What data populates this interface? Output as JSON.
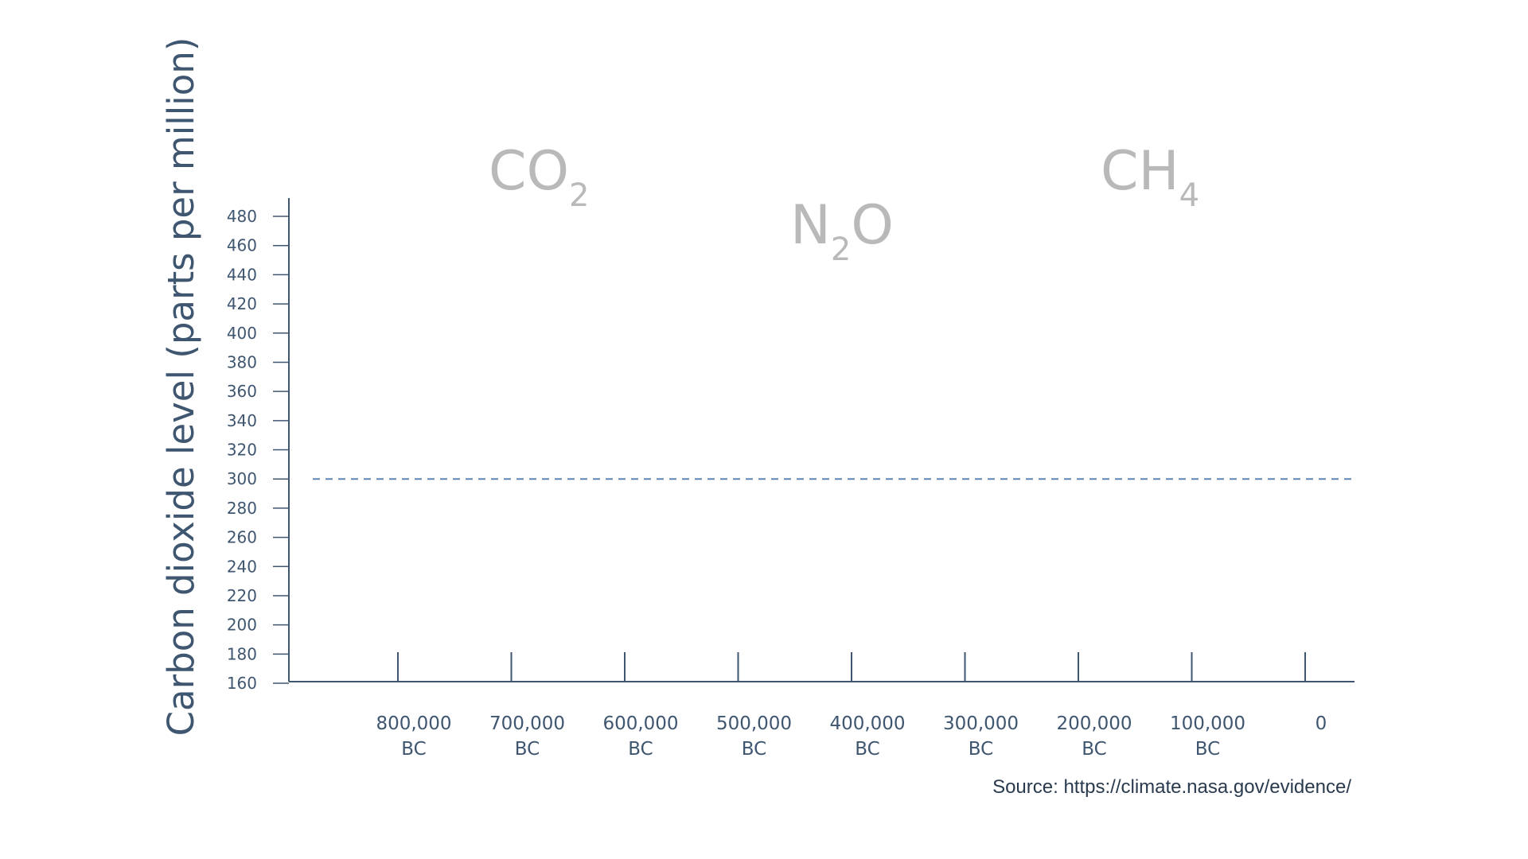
{
  "chart_data": {
    "type": "line",
    "title": "",
    "ylabel": "Carbon dioxide level (parts per million)",
    "xlabel": "",
    "ylim": [
      160,
      480
    ],
    "y_ticks": [
      160,
      180,
      200,
      220,
      240,
      260,
      280,
      300,
      320,
      340,
      360,
      380,
      400,
      420,
      440,
      460,
      480
    ],
    "x_ticks": [
      {
        "value": -800000,
        "line1": "800,000",
        "line2": "BC"
      },
      {
        "value": -700000,
        "line1": "700,000",
        "line2": "BC"
      },
      {
        "value": -600000,
        "line1": "600,000",
        "line2": "BC"
      },
      {
        "value": -500000,
        "line1": "500,000",
        "line2": "BC"
      },
      {
        "value": -400000,
        "line1": "400,000",
        "line2": "BC"
      },
      {
        "value": -300000,
        "line1": "300,000",
        "line2": "BC"
      },
      {
        "value": -200000,
        "line1": "200,000",
        "line2": "BC"
      },
      {
        "value": -100000,
        "line1": "100,000",
        "line2": "BC"
      },
      {
        "value": 0,
        "line1": "0",
        "line2": ""
      }
    ],
    "reference_line": {
      "y": 300,
      "style": "dashed",
      "color": "#5b86b0"
    },
    "gas_labels": [
      {
        "base": "CO",
        "sub": "2",
        "tail": ""
      },
      {
        "base": "N",
        "sub": "2",
        "tail": "O"
      },
      {
        "base": "CH",
        "sub": "4",
        "tail": ""
      }
    ],
    "grid": false,
    "colors": {
      "axis": "#3f5670",
      "gas_label": "#b9b9b9",
      "reference": "#5b86b0"
    }
  },
  "source_text": "Source: https://climate.nasa.gov/evidence/"
}
